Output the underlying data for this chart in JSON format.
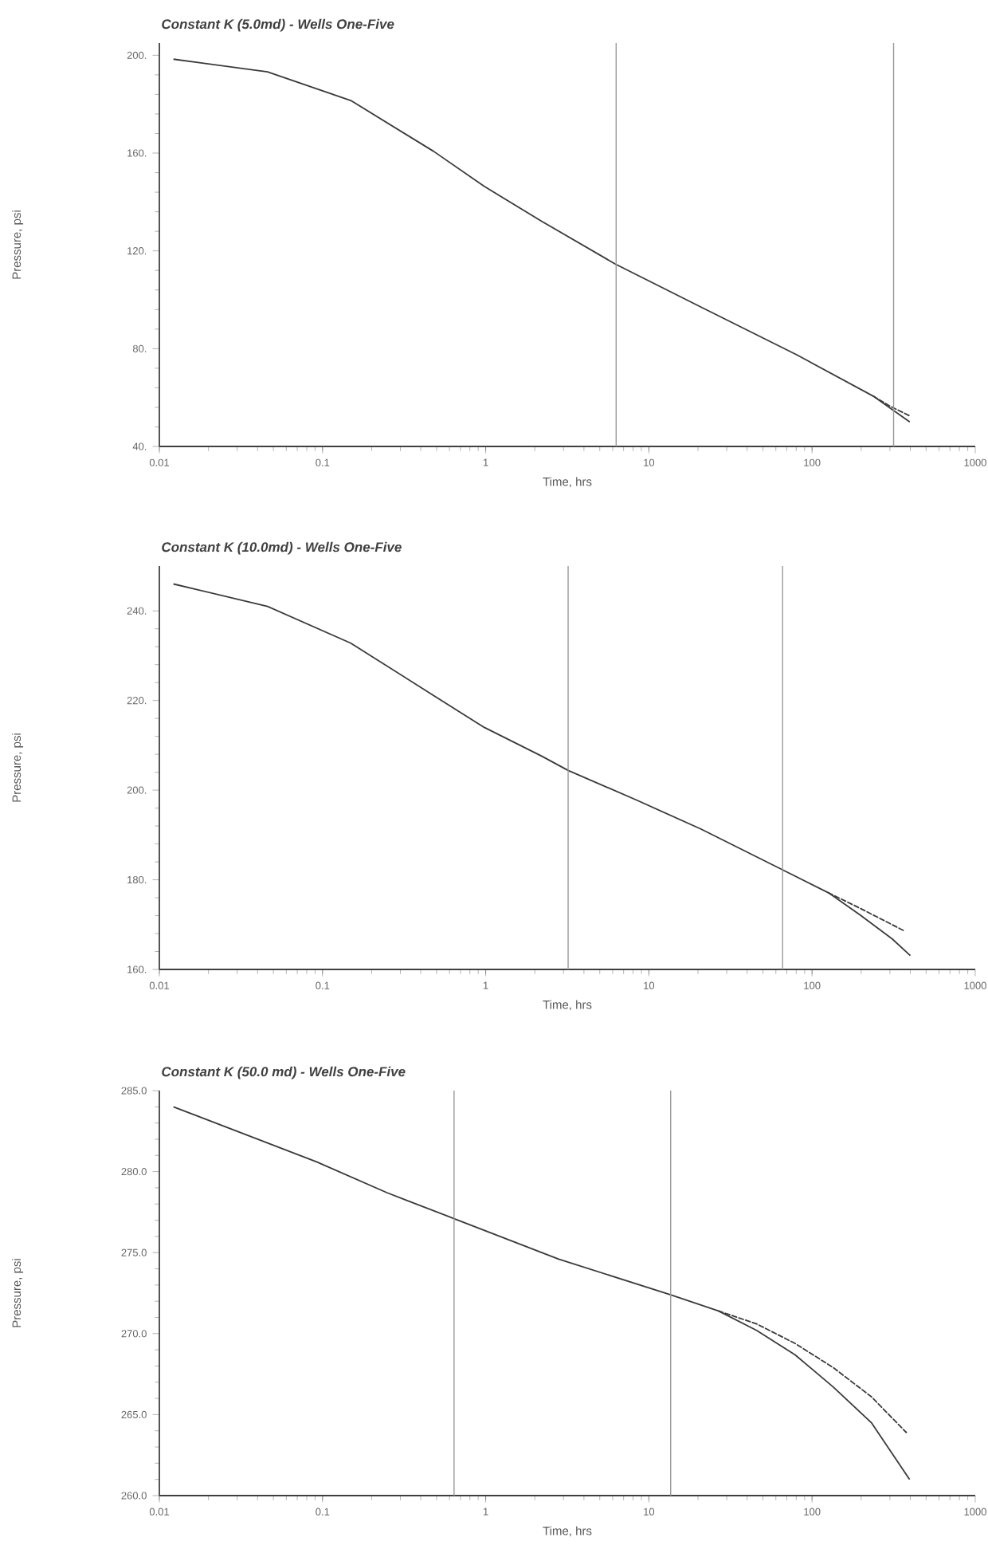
{
  "chart_data": [
    {
      "type": "line",
      "title": "Constant K (5.0md) - Wells One-Five",
      "xlabel": "Time, hrs",
      "ylabel": "Pressure, psi",
      "log": "x",
      "marker": "none",
      "xlim": [
        0.01,
        1000
      ],
      "xticks": [
        0.01,
        0.1,
        1,
        10,
        100,
        1000
      ],
      "ylim": [
        40,
        205
      ],
      "yticks": [
        {
          "value": 40,
          "label": "40."
        },
        {
          "value": 80,
          "label": "80."
        },
        {
          "value": 120,
          "label": "120."
        },
        {
          "value": 160,
          "label": "160."
        },
        {
          "value": 200,
          "label": "200."
        }
      ],
      "series": [
        {
          "color": "#3a3a3a",
          "line_style": "solid",
          "x": [
            0.0122,
            0.046,
            0.149,
            0.48,
            0.98,
            2.2,
            6.2,
            20.9,
            80.5,
            237,
            397
          ],
          "values": [
            198.4,
            193.2,
            181.5,
            160.7,
            146.4,
            132.1,
            114.7,
            97,
            77.5,
            60.6,
            50
          ]
        },
        {
          "color": "#3a3a3a",
          "line_style": "dashed",
          "x": [
            237,
            300,
            397
          ],
          "values": [
            60.6,
            56.5,
            52.5
          ]
        }
      ],
      "ref_lines": [
        {
          "axis": "x",
          "value": 6.3,
          "color": "#9a9a9a"
        },
        {
          "axis": "x",
          "value": 316,
          "color": "#9a9a9a"
        }
      ]
    },
    {
      "type": "line",
      "title": "Constant K (10.0md) - Wells One-Five",
      "xlabel": "Time, hrs",
      "ylabel": "Pressure, psi",
      "log": "x",
      "marker": "none",
      "xlim": [
        0.01,
        1000
      ],
      "xticks": [
        0.01,
        0.1,
        1,
        10,
        100,
        1000
      ],
      "ylim": [
        160,
        250
      ],
      "yticks": [
        {
          "value": 160,
          "label": "160."
        },
        {
          "value": 180,
          "label": "180."
        },
        {
          "value": 200,
          "label": "200."
        },
        {
          "value": 220,
          "label": "220."
        },
        {
          "value": 240,
          "label": "240."
        }
      ],
      "series": [
        {
          "color": "#3a3a3a",
          "line_style": "solid",
          "x": [
            0.0122,
            0.046,
            0.149,
            0.48,
            0.98,
            2.2,
            3.2,
            8.5,
            20.9,
            67,
            126,
            198,
            310,
            400
          ],
          "values": [
            246,
            241,
            232.8,
            221.1,
            214,
            207.6,
            204.4,
            197.7,
            191.3,
            182.1,
            177.1,
            172.1,
            166.8,
            163.1
          ]
        },
        {
          "color": "#3a3a3a",
          "line_style": "dashed",
          "x": [
            126,
            198,
            372
          ],
          "values": [
            177.1,
            173.6,
            168.5
          ]
        }
      ],
      "ref_lines": [
        {
          "axis": "x",
          "value": 3.2,
          "color": "#9a9a9a"
        },
        {
          "axis": "x",
          "value": 66,
          "color": "#9a9a9a"
        }
      ]
    },
    {
      "type": "line",
      "title": "Constant K (50.0 md) - Wells One-Five",
      "xlabel": "Time, hrs",
      "ylabel": "Pressure, psi",
      "log": "x",
      "marker": "none",
      "xlim": [
        0.01,
        1000
      ],
      "xticks": [
        0.01,
        0.1,
        1,
        10,
        100,
        1000
      ],
      "ylim": [
        260,
        285
      ],
      "yticks": [
        {
          "value": 260,
          "label": "260.0"
        },
        {
          "value": 265,
          "label": "265.0"
        },
        {
          "value": 270,
          "label": "270.0"
        },
        {
          "value": 275,
          "label": "275.0"
        },
        {
          "value": 280,
          "label": "280.0"
        },
        {
          "value": 285,
          "label": "285.0"
        }
      ],
      "series": [
        {
          "color": "#3a3a3a",
          "line_style": "solid",
          "x": [
            0.0122,
            0.092,
            0.248,
            0.64,
            2.8,
            13.6,
            26.7,
            45.7,
            78.5,
            135,
            231,
            396
          ],
          "values": [
            284.0,
            280.6,
            278.7,
            277.1,
            274.6,
            272.4,
            271.4,
            270.2,
            268.7,
            266.7,
            264.5,
            261.0
          ]
        },
        {
          "color": "#3a3a3a",
          "line_style": "dashed",
          "x": [
            26.7,
            45.7,
            78.5,
            135,
            231,
            378
          ],
          "values": [
            271.4,
            270.6,
            269.4,
            267.9,
            266.1,
            263.9
          ]
        }
      ],
      "ref_lines": [
        {
          "axis": "x",
          "value": 0.64,
          "color": "#9a9a9a"
        },
        {
          "axis": "x",
          "value": 13.6,
          "color": "#9a9a9a"
        }
      ]
    }
  ]
}
